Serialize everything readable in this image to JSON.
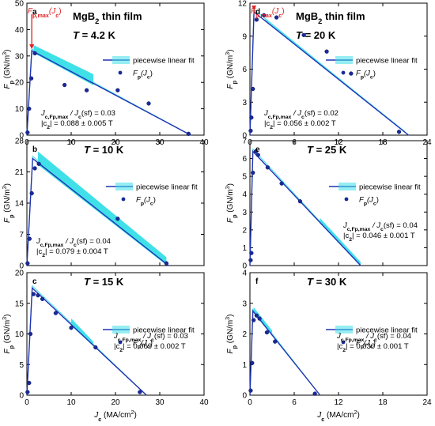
{
  "figure": {
    "material": "MgB",
    "material_sub": "2",
    "material_rest": " thin film",
    "fit_legend": "piecewise linear fit",
    "data_legend": "F",
    "data_legend_sub": "p",
    "data_legend_arg": "(J",
    "data_legend_arg_sub": "c",
    "data_legend_close": ")",
    "ratio_label": "J",
    "ratio_label_sub": "c,Fp,max",
    "ratio_label_mid": " / J",
    "ratio_label_sub2": "c",
    "ratio_label_end": "(sf) = ",
    "c2_label_prefix": "|c",
    "c2_label_sub": "2",
    "c2_label_mid": "| = ",
    "ylabel": "F",
    "ylabel_sub": "p",
    "ylabel_unit": " (GN/m",
    "ylabel_sup": "3",
    "ylabel_close": ")",
    "xlabel": "J",
    "xlabel_sub": "c",
    "xlabel_unit": " (MA/cm",
    "xlabel_sup": "2",
    "xlabel_close": ")",
    "marker_label": "F",
    "marker_label_sub": "p,max",
    "marker_label_arg": "(J",
    "marker_label_arg_sub": "c",
    "marker_label_close": ")",
    "colors": {
      "fit_line": "#1f33b3",
      "band": "#40e0e8",
      "points": "#1a2a9a",
      "marker": "#e02020"
    }
  },
  "chart_data": [
    {
      "panel": "a",
      "type": "scatter",
      "T_label": "T = 4.2 K",
      "xlim": [
        0,
        40
      ],
      "ylim": [
        0,
        50
      ],
      "xticks": [
        0,
        10,
        20,
        30,
        40
      ],
      "yticks": [
        0,
        10,
        20,
        30,
        40,
        50
      ],
      "fit": [
        [
          0,
          0
        ],
        [
          1.1,
          32
        ],
        [
          37,
          0
        ]
      ],
      "band": [
        [
          1.5,
          15,
          2.5,
          3.5
        ]
      ],
      "x": [
        0.15,
        0.5,
        1.0,
        1.8,
        8.5,
        13.5,
        20.5,
        27.5,
        36.5
      ],
      "y": [
        1,
        10,
        21.5,
        31,
        19,
        17,
        17,
        12,
        0.5
      ],
      "ratio": "0.03",
      "c2": "0.088 ± 0.005 T",
      "marker": true
    },
    {
      "panel": "b",
      "type": "scatter",
      "T_label": "T = 10 K",
      "xlim": [
        0,
        40
      ],
      "ylim": [
        0,
        28
      ],
      "xticks": [],
      "yticks": [
        0,
        7,
        14,
        21,
        28
      ],
      "fit": [
        [
          0,
          0
        ],
        [
          1.3,
          24
        ],
        [
          32,
          0
        ]
      ],
      "band": [
        [
          2.5,
          31.5,
          2.5,
          1.5
        ]
      ],
      "x": [
        0.15,
        0.6,
        1.1,
        1.8,
        2.7,
        20.5,
        31.5
      ],
      "y": [
        0.5,
        6,
        16.2,
        21.8,
        22.8,
        10.5,
        0.5
      ],
      "ratio": "0.04",
      "c2": "0.079 ± 0.004 T",
      "marker": false
    },
    {
      "panel": "c",
      "type": "scatter",
      "T_label": "T = 15 K",
      "xlim": [
        0,
        40
      ],
      "ylim": [
        0,
        20
      ],
      "xticks": [
        0,
        10,
        20,
        30,
        40
      ],
      "yticks": [
        0,
        5,
        10,
        15,
        20
      ],
      "fit": [
        [
          0,
          0
        ],
        [
          1.2,
          17.5
        ],
        [
          27,
          0
        ]
      ],
      "band": [
        [
          10,
          15,
          1.0,
          0.6
        ]
      ],
      "x": [
        0.15,
        0.5,
        0.8,
        1.5,
        2.5,
        3.5,
        6.5,
        10,
        15.5,
        25.5
      ],
      "y": [
        0.5,
        2,
        10,
        16.5,
        16.3,
        15.7,
        13.4,
        11,
        7.8,
        0.5
      ],
      "ratio": "0.03",
      "c2": "0.069 ± 0.002 T",
      "marker": false
    },
    {
      "panel": "d",
      "type": "scatter",
      "T_label": "T = 20 K",
      "xlim": [
        0,
        24
      ],
      "ylim": [
        0,
        12
      ],
      "xticks": [
        0,
        6,
        12,
        18,
        24
      ],
      "yticks": [
        0,
        3,
        6,
        9,
        12
      ],
      "fit": [
        [
          0,
          0
        ],
        [
          0.55,
          11.2
        ],
        [
          21.5,
          0
        ]
      ],
      "band": [
        [
          2,
          21,
          0.15,
          0.1
        ]
      ],
      "x": [
        0.1,
        0.2,
        0.4,
        0.9,
        1.9,
        3.6,
        7.3,
        10.4,
        13.7,
        20.2
      ],
      "y": [
        0.4,
        1.6,
        4.2,
        10.5,
        10.9,
        10.7,
        9.1,
        7.6,
        5.6,
        0.3
      ],
      "ratio": "0.02",
      "c2": "0.056 ± 0.002 T",
      "marker": true
    },
    {
      "panel": "e",
      "type": "scatter",
      "T_label": "T = 25 K",
      "xlim": [
        0,
        24
      ],
      "ylim": [
        0,
        7
      ],
      "xticks": [],
      "yticks": [
        0,
        1,
        2,
        3,
        4,
        5,
        6,
        7
      ],
      "fit": [
        [
          0,
          0
        ],
        [
          0.4,
          6.4
        ],
        [
          15,
          0
        ]
      ],
      "band": [
        [
          9.5,
          15,
          0.25,
          0.2
        ]
      ],
      "x": [
        0.1,
        0.2,
        0.4,
        0.8,
        1.1,
        2.4,
        4.3,
        6.8
      ],
      "y": [
        0.3,
        0.7,
        5.2,
        6.4,
        6.2,
        5.5,
        4.6,
        3.6
      ],
      "ratio": "0.04",
      "c2": "0.046 ± 0.001 T",
      "marker": false
    },
    {
      "panel": "f",
      "type": "scatter",
      "T_label": "T = 30 K",
      "xlim": [
        0,
        24
      ],
      "ylim": [
        0,
        4
      ],
      "xticks": [
        0,
        6,
        12,
        18,
        24
      ],
      "yticks": [
        0,
        1,
        2,
        3,
        4
      ],
      "fit": [
        [
          0,
          0
        ],
        [
          0.4,
          2.75
        ],
        [
          9.5,
          0
        ]
      ],
      "band": [
        [
          0.5,
          3,
          0.15,
          0.15
        ]
      ],
      "x": [
        0.1,
        0.3,
        0.5,
        0.9,
        1.3,
        2.3,
        3.4,
        8.8
      ],
      "y": [
        0.15,
        1.05,
        2.45,
        2.6,
        2.5,
        2.05,
        1.75,
        0.05
      ],
      "ratio": "0.04",
      "c2": "0.030 ± 0.001 T",
      "marker": false
    }
  ]
}
